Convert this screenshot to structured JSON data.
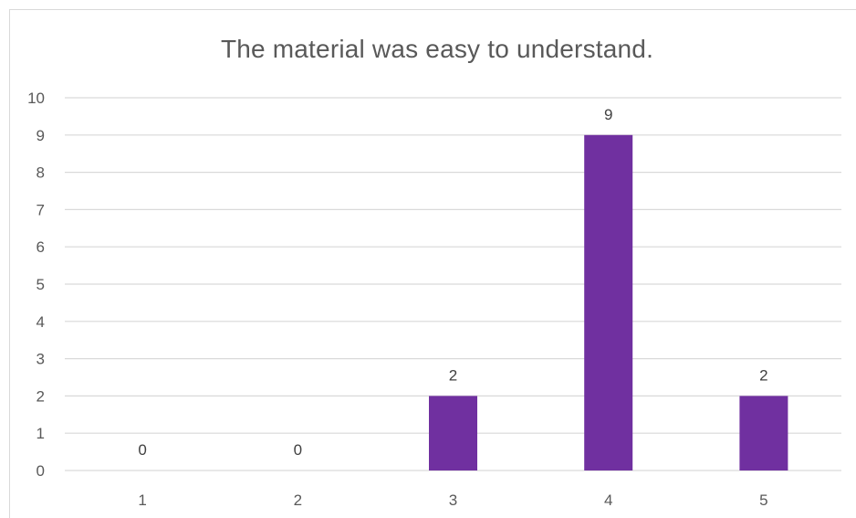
{
  "chart_data": {
    "type": "bar",
    "title": "The material was easy to understand.",
    "categories": [
      "1",
      "2",
      "3",
      "4",
      "5"
    ],
    "values": [
      0,
      0,
      2,
      9,
      2
    ],
    "xlabel": "",
    "ylabel": "",
    "ylim": [
      0,
      10
    ],
    "yticks": [
      0,
      1,
      2,
      3,
      4,
      5,
      6,
      7,
      8,
      9,
      10
    ],
    "grid": true,
    "legend": "none",
    "data_labels": true,
    "bar_color": "#7030a0",
    "grid_color": "#d9d9d9"
  }
}
